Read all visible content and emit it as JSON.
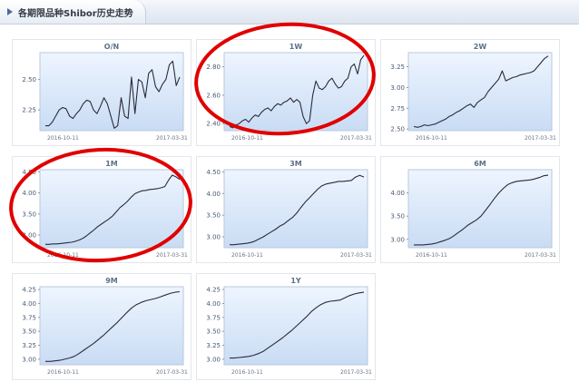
{
  "header": {
    "title": "各期限品种Shibor历史走势"
  },
  "colors": {
    "line": "#2b2b3a",
    "plot_top": "#eef5ff",
    "plot_bottom": "#c9dcf4",
    "highlight": "#e00000"
  },
  "chart_data": [
    {
      "type": "line",
      "title": "O/N",
      "ytick_labels": [
        "2.50",
        "2.25"
      ],
      "yticks": [
        2.5,
        2.25
      ],
      "ylim": [
        2.08,
        2.72
      ],
      "x_start_label": "2016-10-11",
      "x_end_label": "2017-03-31",
      "values": [
        2.12,
        2.12,
        2.15,
        2.2,
        2.25,
        2.27,
        2.26,
        2.2,
        2.18,
        2.22,
        2.25,
        2.3,
        2.33,
        2.32,
        2.25,
        2.22,
        2.28,
        2.35,
        2.3,
        2.2,
        2.1,
        2.12,
        2.35,
        2.2,
        2.18,
        2.52,
        2.22,
        2.5,
        2.48,
        2.35,
        2.55,
        2.58,
        2.44,
        2.4,
        2.46,
        2.5,
        2.62,
        2.65,
        2.45,
        2.52
      ]
    },
    {
      "type": "line",
      "title": "1W",
      "ytick_labels": [
        "2.80",
        "2.60",
        "2.40"
      ],
      "yticks": [
        2.8,
        2.6,
        2.4
      ],
      "ylim": [
        2.35,
        2.9
      ],
      "x_start_label": "2016-10-11",
      "x_end_label": "2017-03-31",
      "values": [
        2.38,
        2.37,
        2.39,
        2.4,
        2.42,
        2.43,
        2.41,
        2.44,
        2.46,
        2.45,
        2.48,
        2.5,
        2.51,
        2.49,
        2.52,
        2.54,
        2.53,
        2.55,
        2.56,
        2.58,
        2.55,
        2.57,
        2.55,
        2.45,
        2.4,
        2.42,
        2.6,
        2.7,
        2.65,
        2.64,
        2.66,
        2.7,
        2.72,
        2.68,
        2.65,
        2.66,
        2.7,
        2.72,
        2.8,
        2.82,
        2.75,
        2.85,
        2.88
      ]
    },
    {
      "type": "line",
      "title": "2W",
      "ytick_labels": [
        "3.25",
        "3.00",
        "2.75",
        "2.50"
      ],
      "yticks": [
        3.25,
        3.0,
        2.75,
        2.5
      ],
      "ylim": [
        2.48,
        3.42
      ],
      "x_start_label": "2016-10-11",
      "x_end_label": "2017-03-31",
      "values": [
        2.53,
        2.52,
        2.53,
        2.55,
        2.54,
        2.55,
        2.56,
        2.58,
        2.6,
        2.62,
        2.65,
        2.67,
        2.7,
        2.72,
        2.75,
        2.78,
        2.8,
        2.76,
        2.82,
        2.85,
        2.88,
        2.95,
        3.0,
        3.05,
        3.1,
        3.2,
        3.08,
        3.1,
        3.12,
        3.13,
        3.15,
        3.16,
        3.17,
        3.18,
        3.2,
        3.25,
        3.3,
        3.35,
        3.38
      ]
    },
    {
      "type": "line",
      "title": "1M",
      "ytick_labels": [
        "4.50",
        "4.00",
        "3.50",
        "3.00"
      ],
      "yticks": [
        4.5,
        4.0,
        3.5,
        3.0
      ],
      "ylim": [
        2.7,
        4.55
      ],
      "x_start_label": "2016-10-11",
      "x_end_label": "2017-03-31",
      "values": [
        2.78,
        2.78,
        2.79,
        2.79,
        2.8,
        2.81,
        2.82,
        2.83,
        2.85,
        2.88,
        2.92,
        2.98,
        3.05,
        3.12,
        3.2,
        3.26,
        3.32,
        3.38,
        3.45,
        3.55,
        3.65,
        3.72,
        3.8,
        3.9,
        3.98,
        4.02,
        4.05,
        4.06,
        4.08,
        4.09,
        4.1,
        4.12,
        4.15,
        4.3,
        4.42,
        4.38,
        4.32
      ]
    },
    {
      "type": "line",
      "title": "3M",
      "ytick_labels": [
        "4.50",
        "4.00",
        "3.50",
        "3.00"
      ],
      "yticks": [
        4.5,
        4.0,
        3.5,
        3.0
      ],
      "ylim": [
        2.75,
        4.55
      ],
      "x_start_label": "2016-10-11",
      "x_end_label": "2017-03-31",
      "values": [
        2.82,
        2.82,
        2.83,
        2.84,
        2.85,
        2.87,
        2.9,
        2.95,
        3.0,
        3.06,
        3.12,
        3.18,
        3.25,
        3.3,
        3.38,
        3.45,
        3.55,
        3.68,
        3.8,
        3.9,
        4.0,
        4.1,
        4.18,
        4.22,
        4.24,
        4.26,
        4.28,
        4.28,
        4.29,
        4.3,
        4.38,
        4.42,
        4.38
      ]
    },
    {
      "type": "line",
      "title": "6M",
      "ytick_labels": [
        "4.00",
        "3.50",
        "3.00"
      ],
      "yticks": [
        4.0,
        3.5,
        3.0
      ],
      "ylim": [
        2.82,
        4.5
      ],
      "x_start_label": "2016-10-11",
      "x_end_label": "2017-03-31",
      "values": [
        2.88,
        2.88,
        2.88,
        2.89,
        2.9,
        2.92,
        2.95,
        2.98,
        3.02,
        3.08,
        3.15,
        3.22,
        3.3,
        3.36,
        3.42,
        3.5,
        3.62,
        3.75,
        3.88,
        4.0,
        4.1,
        4.18,
        4.22,
        4.25,
        4.26,
        4.27,
        4.28,
        4.3,
        4.33,
        4.37,
        4.38
      ]
    },
    {
      "type": "line",
      "title": "9M",
      "ytick_labels": [
        "4.25",
        "4.00",
        "3.75",
        "3.50",
        "3.25",
        "3.00"
      ],
      "yticks": [
        4.25,
        4.0,
        3.75,
        3.5,
        3.25,
        3.0
      ],
      "ylim": [
        2.9,
        4.3
      ],
      "x_start_label": "2016-10-11",
      "x_end_label": "2017-03-31",
      "values": [
        2.96,
        2.96,
        2.97,
        2.98,
        3.0,
        3.02,
        3.05,
        3.1,
        3.16,
        3.22,
        3.28,
        3.35,
        3.42,
        3.5,
        3.58,
        3.66,
        3.75,
        3.84,
        3.92,
        3.98,
        4.02,
        4.05,
        4.07,
        4.09,
        4.12,
        4.15,
        4.18,
        4.2,
        4.21
      ]
    },
    {
      "type": "line",
      "title": "1Y",
      "ytick_labels": [
        "4.25",
        "4.00",
        "3.75",
        "3.50",
        "3.25",
        "3.00"
      ],
      "yticks": [
        4.25,
        4.0,
        3.75,
        3.5,
        3.25,
        3.0
      ],
      "ylim": [
        2.9,
        4.3
      ],
      "x_start_label": "2016-10-11",
      "x_end_label": "2017-03-31",
      "values": [
        3.02,
        3.02,
        3.03,
        3.04,
        3.05,
        3.07,
        3.1,
        3.14,
        3.2,
        3.26,
        3.32,
        3.38,
        3.45,
        3.52,
        3.6,
        3.68,
        3.76,
        3.85,
        3.92,
        3.98,
        4.02,
        4.04,
        4.05,
        4.06,
        4.1,
        4.14,
        4.17,
        4.19,
        4.2
      ]
    }
  ]
}
